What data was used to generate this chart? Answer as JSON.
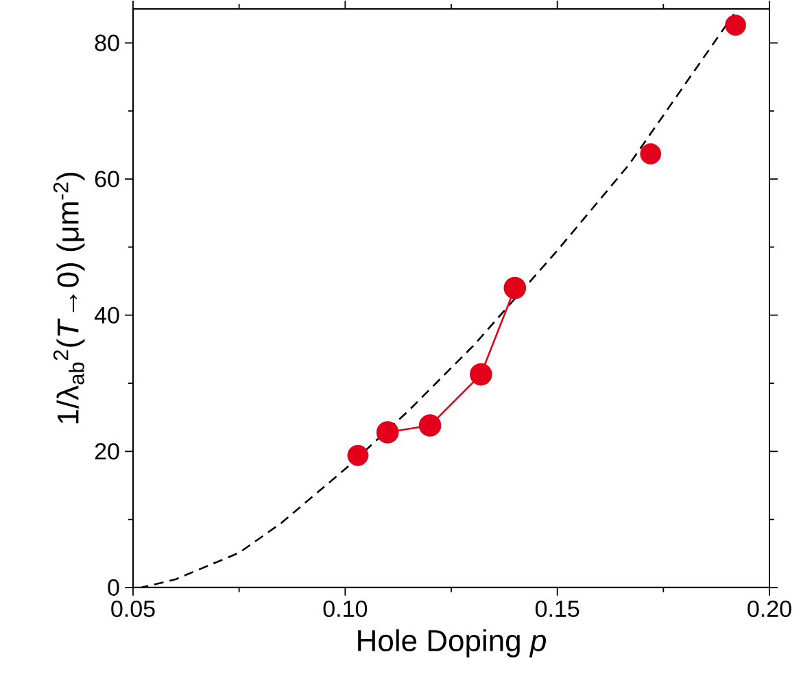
{
  "chart_data": {
    "type": "scatter",
    "xlabel": "Hole Doping *p*",
    "ylabel": "1/λ$_{ab}$$^{2}$(*T*→0) (μm$^{-2}$)",
    "series": [
      {
        "type": "line",
        "color": "#000000",
        "line_style": "dashed",
        "marker": "none",
        "x": [
          0.052,
          0.06,
          0.075,
          0.085,
          0.1,
          0.115,
          0.1305,
          0.15,
          0.167,
          0.1916
        ],
        "values": [
          0,
          1.2,
          5.1,
          9.5,
          17.4,
          26,
          35.7,
          49.5,
          62.2,
          84.2
        ]
      },
      {
        "type": "line",
        "color": "#e2001a",
        "line_style": "solid",
        "marker": "circle",
        "x": [
          0.11,
          0.12,
          0.132,
          0.14
        ],
        "values": [
          22.8,
          23.8,
          31.3,
          44.0
        ]
      },
      {
        "color": "#e2001a",
        "marker": "circle",
        "x": [
          0.103,
          0.172,
          0.192
        ],
        "values": [
          19.4,
          63.7,
          82.6
        ]
      }
    ],
    "xlim": [
      0.05,
      0.2
    ],
    "ylim": [
      0,
      85
    ],
    "xticks": [
      {
        "value": 0.05,
        "label": "0.05"
      },
      {
        "value": 0.1,
        "label": "0.10"
      },
      {
        "value": 0.15,
        "label": "0.15"
      },
      {
        "value": 0.2,
        "label": "0.20"
      }
    ],
    "yticks": [
      0,
      20,
      40,
      60,
      80
    ],
    "grid": false
  }
}
